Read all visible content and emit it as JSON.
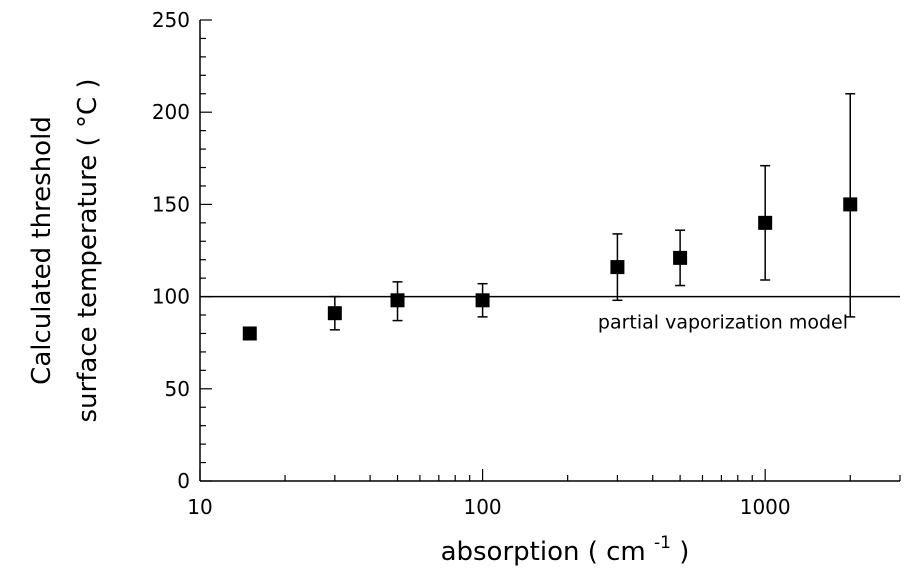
{
  "chart_data": {
    "type": "scatter",
    "xscale": "log",
    "xlim": [
      10,
      3000
    ],
    "ylim": [
      0,
      250
    ],
    "xticks": [
      10,
      100,
      1000
    ],
    "xtick_labels": [
      "10",
      "100",
      "1000"
    ],
    "yticks": [
      0,
      50,
      100,
      150,
      200,
      250
    ],
    "ytick_labels": [
      "0",
      "50",
      "100",
      "150",
      "200",
      "250"
    ],
    "xlabel": "absorption ( cm",
    "xlabel_sup": "-1",
    "xlabel_end": " )",
    "ylabel_line1": "Calculated threshold",
    "ylabel_line2": "surface temperature ( °C )",
    "grid": false,
    "points": [
      {
        "x": 15,
        "y": 80,
        "err_low": 78,
        "err_high": 82
      },
      {
        "x": 30,
        "y": 91,
        "err_low": 82,
        "err_high": 100
      },
      {
        "x": 50,
        "y": 98,
        "err_low": 87,
        "err_high": 108
      },
      {
        "x": 100,
        "y": 98,
        "err_low": 89,
        "err_high": 107
      },
      {
        "x": 300,
        "y": 116,
        "err_low": 98,
        "err_high": 134
      },
      {
        "x": 500,
        "y": 121,
        "err_low": 106,
        "err_high": 136
      },
      {
        "x": 1000,
        "y": 140,
        "err_low": 109,
        "err_high": 171
      },
      {
        "x": 2000,
        "y": 150,
        "err_low": 89,
        "err_high": 210
      }
    ],
    "reference_line": {
      "y": 100,
      "label": "partial vaporization model"
    }
  }
}
